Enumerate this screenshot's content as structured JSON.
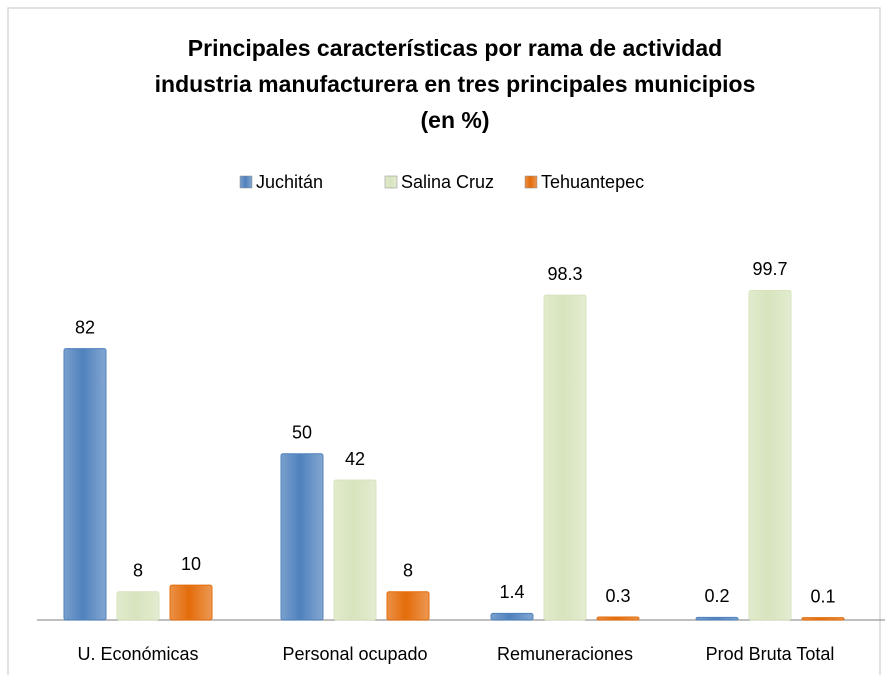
{
  "chart_data": {
    "type": "bar",
    "title": [
      "Principales características por rama de actividad",
      "industria manufacturera en tres principales municipios",
      "(en %)"
    ],
    "categories": [
      "U. Económicas",
      "Personal ocupado",
      "Remuneraciones",
      "Prod Bruta Total"
    ],
    "series": [
      {
        "name": "Juchitán",
        "color": "#4f81bd",
        "values": [
          82,
          50,
          1.4,
          0.2
        ]
      },
      {
        "name": "Salina Cruz",
        "color": "#d7e4bd",
        "values": [
          8,
          42,
          98.3,
          99.7
        ]
      },
      {
        "name": "Tehuantepec",
        "color": "#e46c0a",
        "values": [
          10,
          8,
          0.3,
          0.1
        ]
      }
    ]
  }
}
